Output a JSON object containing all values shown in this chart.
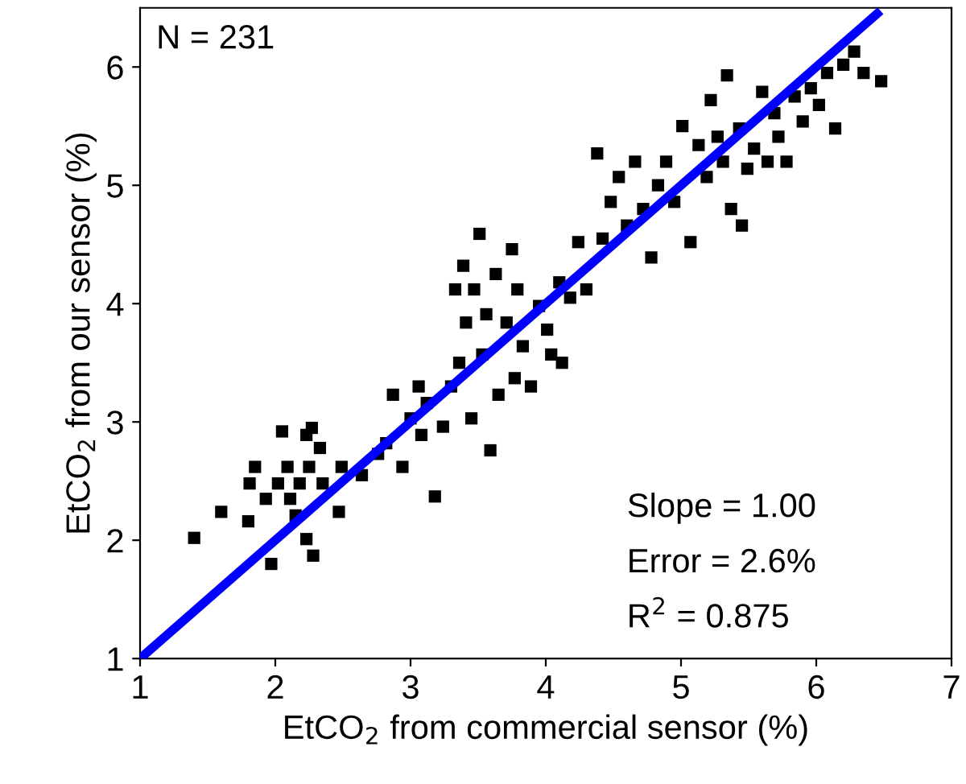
{
  "chart_data": {
    "type": "scatter",
    "xlabel": "EtCO$_{2}$ from commercial sensor (%)",
    "ylabel": "EtCO$_{2}$ from our sensor (%)",
    "xlim": [
      1,
      7
    ],
    "ylim": [
      1,
      6.5
    ],
    "xticks": [
      1,
      2,
      3,
      4,
      5,
      6,
      7
    ],
    "yticks": [
      1,
      2,
      3,
      4,
      5,
      6
    ],
    "grid": false,
    "legend": false,
    "marker": "square",
    "annotations": [
      "N = 231",
      "Slope = 1.00",
      "Error = 2.6%",
      "R$^{2}$ = 0.875"
    ],
    "series": [
      {
        "color": "#000000",
        "x": [
          1.4,
          1.6,
          1.8,
          1.81,
          1.85,
          1.93,
          1.97,
          2.02,
          2.05,
          2.09,
          2.11,
          2.15,
          2.18,
          2.23,
          2.25,
          2.27,
          2.28,
          2.23,
          2.33,
          2.35,
          2.47,
          2.49,
          2.64,
          2.76,
          2.82,
          2.87,
          2.94,
          3.0,
          3.06,
          3.08,
          3.18,
          3.12,
          3.24,
          3.3,
          3.36,
          3.33,
          3.39,
          3.41,
          3.45,
          3.47,
          3.51,
          3.53,
          3.56,
          3.59,
          3.63,
          3.65,
          3.71,
          3.75,
          3.77,
          3.79,
          3.83,
          3.89,
          3.95,
          4.01,
          4.04,
          4.1,
          4.12,
          4.18,
          4.24,
          4.3,
          4.38,
          4.42,
          4.48,
          4.54,
          4.6,
          4.66,
          4.72,
          4.78,
          4.83,
          4.89,
          4.95,
          5.01,
          5.07,
          5.13,
          5.19,
          5.22,
          5.27,
          5.31,
          5.34,
          5.37,
          5.43,
          5.45,
          5.49,
          5.54,
          5.6,
          5.64,
          5.69,
          5.72,
          5.78,
          5.84,
          5.9,
          5.96,
          6.02,
          6.08,
          6.14,
          6.2,
          6.28,
          6.35,
          6.48
        ],
        "values": [
          2.02,
          2.24,
          2.16,
          2.48,
          2.62,
          2.35,
          1.8,
          2.48,
          2.92,
          2.62,
          2.35,
          2.21,
          2.48,
          2.89,
          2.62,
          2.95,
          1.87,
          2.01,
          2.78,
          2.48,
          2.24,
          2.62,
          2.55,
          2.73,
          2.82,
          3.23,
          2.62,
          3.03,
          3.3,
          2.89,
          2.37,
          3.16,
          2.96,
          3.3,
          3.5,
          4.12,
          4.32,
          3.84,
          3.03,
          4.12,
          4.59,
          3.57,
          3.91,
          2.76,
          4.25,
          3.23,
          3.84,
          4.46,
          3.37,
          4.12,
          3.64,
          3.3,
          3.98,
          3.78,
          3.57,
          4.18,
          3.5,
          4.05,
          4.52,
          4.12,
          5.27,
          4.55,
          4.86,
          5.07,
          4.66,
          5.2,
          4.8,
          4.39,
          5.0,
          5.2,
          4.86,
          5.5,
          4.52,
          5.34,
          5.07,
          5.72,
          5.41,
          5.2,
          5.93,
          4.8,
          5.48,
          4.66,
          5.14,
          5.31,
          5.79,
          5.2,
          5.61,
          5.41,
          5.2,
          5.75,
          5.54,
          5.82,
          5.68,
          5.95,
          5.48,
          6.02,
          6.13,
          5.95,
          5.88
        ]
      },
      {
        "type": "line",
        "color": "#0000ff",
        "marker": "none",
        "line_style": "solid",
        "x": [
          1,
          6.45
        ],
        "values": [
          1,
          6.45
        ]
      }
    ]
  }
}
